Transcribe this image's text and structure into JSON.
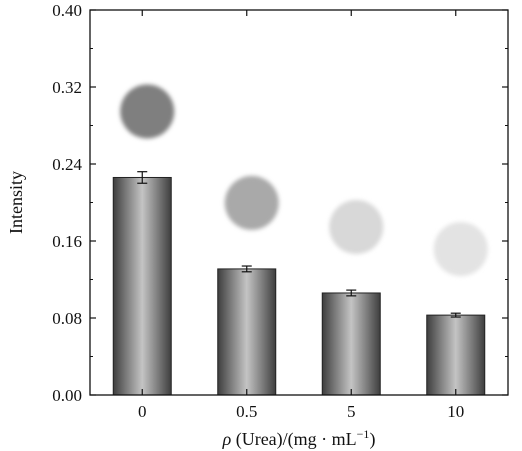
{
  "chart_data": {
    "type": "bar",
    "categories": [
      "0",
      "0.5",
      "5",
      "10"
    ],
    "values": [
      0.226,
      0.131,
      0.106,
      0.083
    ],
    "errors": [
      0.006,
      0.003,
      0.003,
      0.002
    ],
    "ylabel": "Intensity",
    "xlabel_prefix": "ρ",
    "xlabel_suffix": " (Urea)/(mg · mL",
    "xlabel_sup": "−1",
    "xlabel_end": ")",
    "ylim": [
      0,
      0.4
    ],
    "yticks": [
      "0.00",
      "0.08",
      "0.16",
      "0.24",
      "0.32",
      "0.40"
    ],
    "grid": false,
    "spot_images": [
      {
        "shade": "#7f7f7f"
      },
      {
        "shade": "#a9a9a9"
      },
      {
        "shade": "#d8d8d8"
      },
      {
        "shade": "#e3e3e3"
      }
    ]
  }
}
